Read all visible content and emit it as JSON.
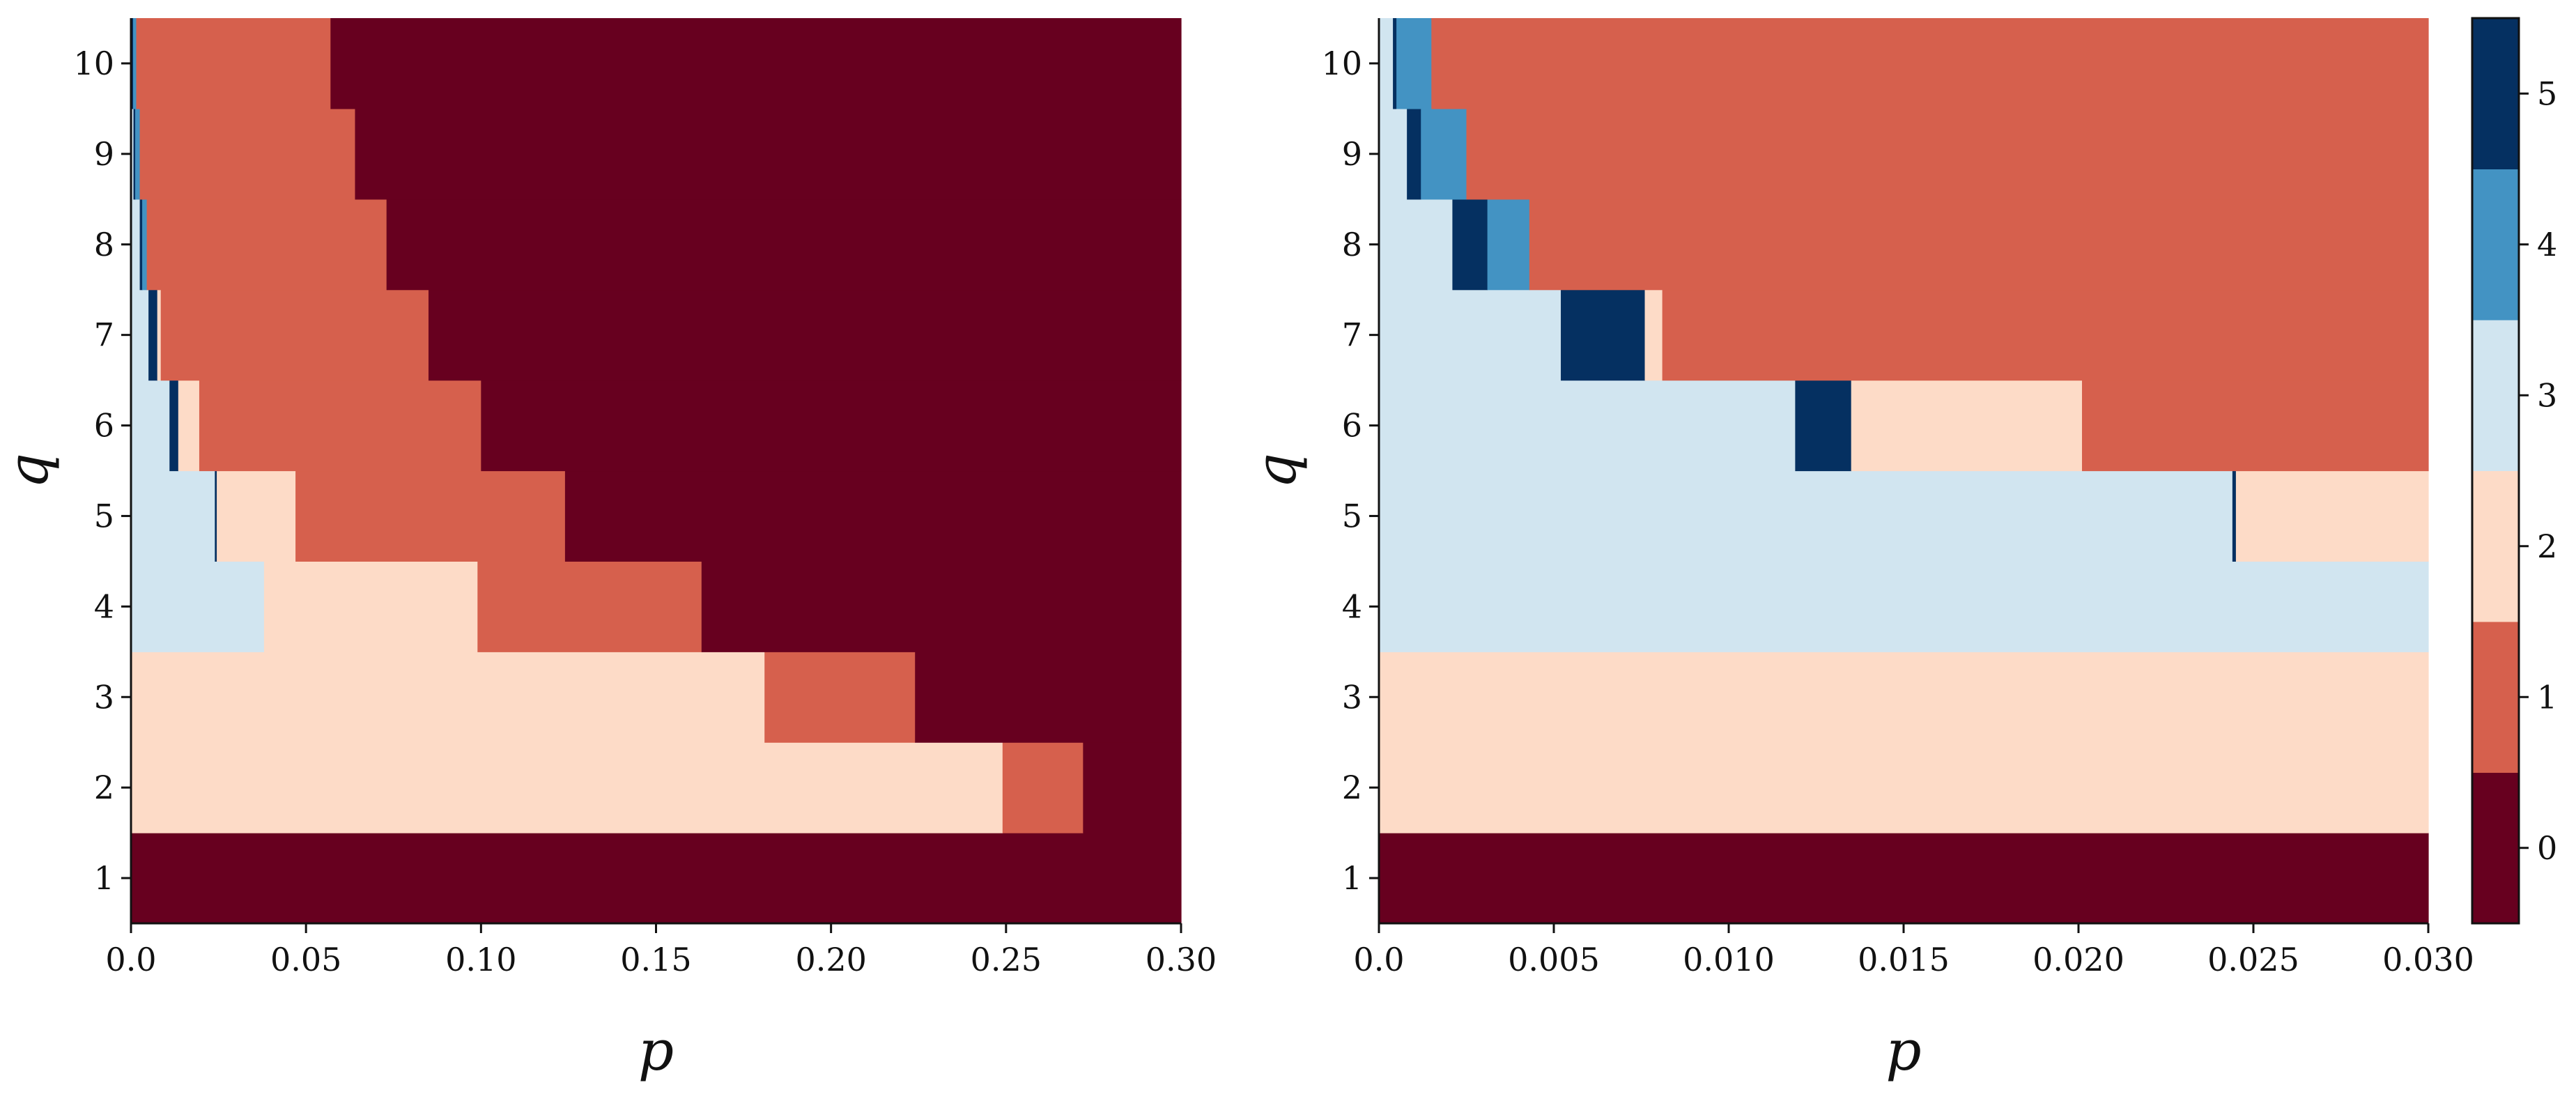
{
  "chart_data": [
    {
      "type": "heatmap",
      "title": "",
      "xlabel": "p",
      "ylabel": "q",
      "xlim": [
        0.0,
        0.3
      ],
      "ylim": [
        0.5,
        10.5
      ],
      "x_ticks": [
        0.0,
        0.05,
        0.1,
        0.15,
        0.2,
        0.25,
        0.3
      ],
      "x_tick_labels": [
        "0.0",
        "0.05",
        "0.10",
        "0.15",
        "0.20",
        "0.25",
        "0.30"
      ],
      "y_ticks": [
        1,
        2,
        3,
        4,
        5,
        6,
        7,
        8,
        9,
        10
      ],
      "y_tick_labels": [
        "1",
        "2",
        "3",
        "4",
        "5",
        "6",
        "7",
        "8",
        "9",
        "10"
      ],
      "rows": [
        {
          "q": 1,
          "segments": [
            {
              "p0": 0.0,
              "p1": 0.3,
              "v": 0
            }
          ]
        },
        {
          "q": 2,
          "segments": [
            {
              "p0": 0.0,
              "p1": 0.249,
              "v": 2
            },
            {
              "p0": 0.249,
              "p1": 0.272,
              "v": 1
            },
            {
              "p0": 0.272,
              "p1": 0.3,
              "v": 0
            }
          ]
        },
        {
          "q": 3,
          "segments": [
            {
              "p0": 0.0,
              "p1": 0.181,
              "v": 2
            },
            {
              "p0": 0.181,
              "p1": 0.224,
              "v": 1
            },
            {
              "p0": 0.224,
              "p1": 0.3,
              "v": 0
            }
          ]
        },
        {
          "q": 4,
          "segments": [
            {
              "p0": 0.0,
              "p1": 0.038,
              "v": 3
            },
            {
              "p0": 0.038,
              "p1": 0.099,
              "v": 2
            },
            {
              "p0": 0.099,
              "p1": 0.163,
              "v": 1
            },
            {
              "p0": 0.163,
              "p1": 0.3,
              "v": 0
            }
          ]
        },
        {
          "q": 5,
          "segments": [
            {
              "p0": 0.0,
              "p1": 0.024,
              "v": 3
            },
            {
              "p0": 0.024,
              "p1": 0.0245,
              "v": 5
            },
            {
              "p0": 0.0245,
              "p1": 0.047,
              "v": 2
            },
            {
              "p0": 0.047,
              "p1": 0.124,
              "v": 1
            },
            {
              "p0": 0.124,
              "p1": 0.3,
              "v": 0
            }
          ]
        },
        {
          "q": 6,
          "segments": [
            {
              "p0": 0.0,
              "p1": 0.011,
              "v": 3
            },
            {
              "p0": 0.011,
              "p1": 0.0135,
              "v": 5
            },
            {
              "p0": 0.0135,
              "p1": 0.0195,
              "v": 2
            },
            {
              "p0": 0.0195,
              "p1": 0.1,
              "v": 1
            },
            {
              "p0": 0.1,
              "p1": 0.3,
              "v": 0
            }
          ]
        },
        {
          "q": 7,
          "segments": [
            {
              "p0": 0.0,
              "p1": 0.005,
              "v": 3
            },
            {
              "p0": 0.005,
              "p1": 0.0075,
              "v": 5
            },
            {
              "p0": 0.0075,
              "p1": 0.0085,
              "v": 2
            },
            {
              "p0": 0.0085,
              "p1": 0.085,
              "v": 1
            },
            {
              "p0": 0.085,
              "p1": 0.3,
              "v": 0
            }
          ]
        },
        {
          "q": 8,
          "segments": [
            {
              "p0": 0.0,
              "p1": 0.0025,
              "v": 3
            },
            {
              "p0": 0.0025,
              "p1": 0.0032,
              "v": 5
            },
            {
              "p0": 0.0032,
              "p1": 0.0045,
              "v": 4
            },
            {
              "p0": 0.0045,
              "p1": 0.073,
              "v": 1
            },
            {
              "p0": 0.073,
              "p1": 0.3,
              "v": 0
            }
          ]
        },
        {
          "q": 9,
          "segments": [
            {
              "p0": 0.0,
              "p1": 0.0008,
              "v": 3
            },
            {
              "p0": 0.0008,
              "p1": 0.0012,
              "v": 5
            },
            {
              "p0": 0.0012,
              "p1": 0.0025,
              "v": 4
            },
            {
              "p0": 0.0025,
              "p1": 0.064,
              "v": 1
            },
            {
              "p0": 0.064,
              "p1": 0.3,
              "v": 0
            }
          ]
        },
        {
          "q": 10,
          "segments": [
            {
              "p0": 0.0,
              "p1": 0.0004,
              "v": 3
            },
            {
              "p0": 0.0004,
              "p1": 0.0006,
              "v": 5
            },
            {
              "p0": 0.0006,
              "p1": 0.0015,
              "v": 4
            },
            {
              "p0": 0.0015,
              "p1": 0.057,
              "v": 1
            },
            {
              "p0": 0.057,
              "p1": 0.3,
              "v": 0
            }
          ]
        }
      ]
    },
    {
      "type": "heatmap",
      "title": "",
      "xlabel": "p",
      "ylabel": "q",
      "xlim": [
        0.0,
        0.03
      ],
      "ylim": [
        0.5,
        10.5
      ],
      "x_ticks": [
        0.0,
        0.005,
        0.01,
        0.015,
        0.02,
        0.025,
        0.03
      ],
      "x_tick_labels": [
        "0.0",
        "0.005",
        "0.010",
        "0.015",
        "0.020",
        "0.025",
        "0.030"
      ],
      "y_ticks": [
        1,
        2,
        3,
        4,
        5,
        6,
        7,
        8,
        9,
        10
      ],
      "y_tick_labels": [
        "1",
        "2",
        "3",
        "4",
        "5",
        "6",
        "7",
        "8",
        "9",
        "10"
      ],
      "rows": [
        {
          "q": 1,
          "segments": [
            {
              "p0": 0.0,
              "p1": 0.03,
              "v": 0
            }
          ]
        },
        {
          "q": 2,
          "segments": [
            {
              "p0": 0.0,
              "p1": 0.03,
              "v": 2
            }
          ]
        },
        {
          "q": 3,
          "segments": [
            {
              "p0": 0.0,
              "p1": 0.03,
              "v": 2
            }
          ]
        },
        {
          "q": 4,
          "segments": [
            {
              "p0": 0.0,
              "p1": 0.03,
              "v": 3
            }
          ]
        },
        {
          "q": 5,
          "segments": [
            {
              "p0": 0.0,
              "p1": 0.0244,
              "v": 3
            },
            {
              "p0": 0.0244,
              "p1": 0.0245,
              "v": 5
            },
            {
              "p0": 0.0245,
              "p1": 0.03,
              "v": 2
            }
          ]
        },
        {
          "q": 6,
          "segments": [
            {
              "p0": 0.0,
              "p1": 0.0119,
              "v": 3
            },
            {
              "p0": 0.0119,
              "p1": 0.0135,
              "v": 5
            },
            {
              "p0": 0.0135,
              "p1": 0.0201,
              "v": 2
            },
            {
              "p0": 0.0201,
              "p1": 0.03,
              "v": 1
            }
          ]
        },
        {
          "q": 7,
          "segments": [
            {
              "p0": 0.0,
              "p1": 0.0052,
              "v": 3
            },
            {
              "p0": 0.0052,
              "p1": 0.0076,
              "v": 5
            },
            {
              "p0": 0.0076,
              "p1": 0.0081,
              "v": 2
            },
            {
              "p0": 0.0081,
              "p1": 0.03,
              "v": 1
            }
          ]
        },
        {
          "q": 8,
          "segments": [
            {
              "p0": 0.0,
              "p1": 0.0021,
              "v": 3
            },
            {
              "p0": 0.0021,
              "p1": 0.0031,
              "v": 5
            },
            {
              "p0": 0.0031,
              "p1": 0.0043,
              "v": 4
            },
            {
              "p0": 0.0043,
              "p1": 0.03,
              "v": 1
            }
          ]
        },
        {
          "q": 9,
          "segments": [
            {
              "p0": 0.0,
              "p1": 0.0008,
              "v": 3
            },
            {
              "p0": 0.0008,
              "p1": 0.0012,
              "v": 5
            },
            {
              "p0": 0.0012,
              "p1": 0.0025,
              "v": 4
            },
            {
              "p0": 0.0025,
              "p1": 0.03,
              "v": 1
            }
          ]
        },
        {
          "q": 10,
          "segments": [
            {
              "p0": 0.0,
              "p1": 0.0004,
              "v": 3
            },
            {
              "p0": 0.0004,
              "p1": 0.0005,
              "v": 5
            },
            {
              "p0": 0.0005,
              "p1": 0.0015,
              "v": 4
            },
            {
              "p0": 0.0015,
              "p1": 0.03,
              "v": 1
            }
          ]
        }
      ]
    }
  ],
  "colorbar": {
    "values": [
      0,
      1,
      2,
      3,
      4,
      5
    ],
    "tick_labels": [
      "0",
      "1",
      "2",
      "3",
      "4",
      "5"
    ],
    "colors": [
      "#67001f",
      "#d6604d",
      "#fddbc7",
      "#d1e5f0",
      "#4393c3",
      "#053061"
    ]
  }
}
